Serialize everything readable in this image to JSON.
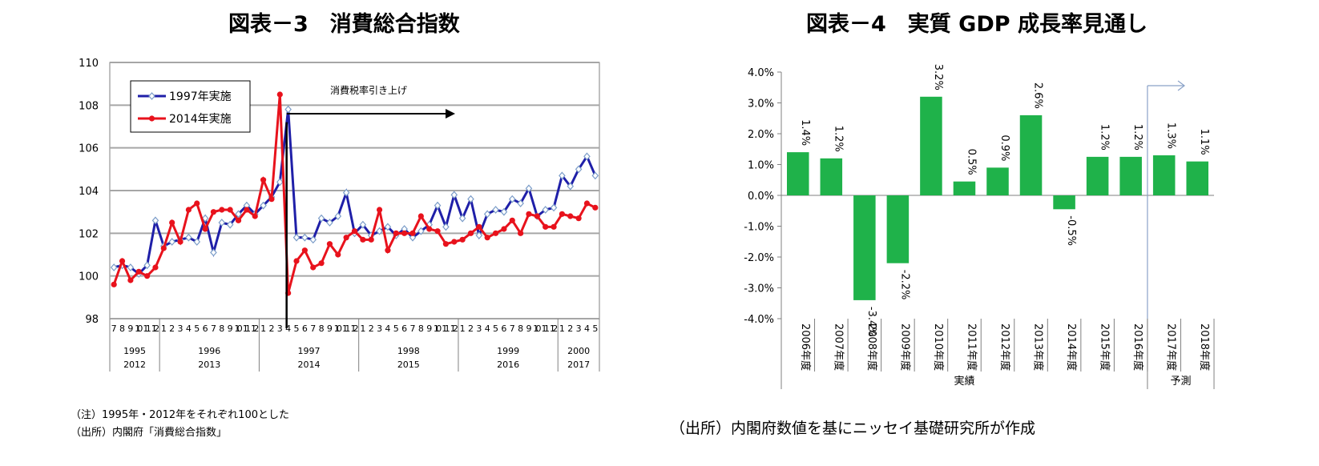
{
  "titles": {
    "left": "図表－3　消費総合指数",
    "right": "図表－4　実質 GDP 成長率見通し"
  },
  "notes": {
    "left_note": "（注）1995年・2012年をそれぞれ100とした",
    "left_source": "（出所）内閣府「消費総合指数」",
    "right_source": "（出所）内閣府数値を基にニッセイ基礎研究所が作成"
  },
  "colors": {
    "series_1997": "#1f1fa8",
    "series_2014": "#e8121c",
    "bar": "#1fb24a"
  },
  "chart_data": [
    {
      "type": "line",
      "title": "消費総合指数",
      "ylim": [
        98,
        110
      ],
      "yticks": [
        98,
        100,
        102,
        104,
        106,
        108,
        110
      ],
      "grid": true,
      "legend_position": "top-left",
      "month_labels": [
        "7",
        "8",
        "9",
        "10",
        "11",
        "12",
        "1",
        "2",
        "3",
        "4",
        "5",
        "6",
        "7",
        "8",
        "9",
        "10",
        "11",
        "12",
        "1",
        "2",
        "3",
        "4",
        "5",
        "6",
        "7",
        "8",
        "9",
        "10",
        "11",
        "12",
        "1",
        "2",
        "3",
        "4",
        "5",
        "6",
        "7",
        "8",
        "9",
        "10",
        "11",
        "12",
        "1",
        "2",
        "3",
        "4",
        "5",
        "6",
        "7",
        "8",
        "9",
        "10",
        "11",
        "12",
        "1",
        "2",
        "3",
        "4",
        "5"
      ],
      "year_groups": [
        {
          "top": "1995",
          "bottom": "2012",
          "start": 0,
          "end": 6
        },
        {
          "top": "1996",
          "bottom": "2013",
          "start": 6,
          "end": 18
        },
        {
          "top": "1997",
          "bottom": "2014",
          "start": 18,
          "end": 30
        },
        {
          "top": "1998",
          "bottom": "2015",
          "start": 30,
          "end": 42
        },
        {
          "top": "1999",
          "bottom": "2016",
          "start": 42,
          "end": 54
        },
        {
          "top": "2000",
          "bottom": "2017",
          "start": 54,
          "end": 59
        }
      ],
      "annotation": {
        "text": "消費税率引き上げ",
        "index": 21
      },
      "series": [
        {
          "name": "1997年実施",
          "color": "#1f1fa8",
          "marker": "diamond",
          "values": [
            100.4,
            100.5,
            100.4,
            100.1,
            100.5,
            102.6,
            101.4,
            101.6,
            101.7,
            101.8,
            101.6,
            102.7,
            101.1,
            102.5,
            102.4,
            102.9,
            103.3,
            102.9,
            103.3,
            103.7,
            104.4,
            107.8,
            101.8,
            101.8,
            101.7,
            102.7,
            102.5,
            102.8,
            103.9,
            102.0,
            102.4,
            101.9,
            102.1,
            102.3,
            101.9,
            102.2,
            101.8,
            102.1,
            102.4,
            103.3,
            102.3,
            103.8,
            102.7,
            103.6,
            101.9,
            102.9,
            103.1,
            103.0,
            103.6,
            103.4,
            104.1,
            102.8,
            103.1,
            103.2,
            104.7,
            104.2,
            105.0,
            105.6,
            104.7
          ]
        },
        {
          "name": "2014年実施",
          "color": "#e8121c",
          "marker": "circle",
          "values": [
            99.6,
            100.7,
            99.8,
            100.2,
            100.0,
            100.4,
            101.3,
            102.5,
            101.6,
            103.1,
            103.4,
            102.2,
            103.0,
            103.1,
            103.1,
            102.6,
            103.1,
            102.8,
            104.5,
            103.6,
            108.5,
            99.2,
            100.7,
            101.2,
            100.4,
            100.6,
            101.5,
            101.0,
            101.8,
            102.1,
            101.7,
            101.7,
            103.1,
            101.2,
            102.0,
            102.0,
            102.0,
            102.8,
            102.2,
            102.1,
            101.5,
            101.6,
            101.7,
            102.0,
            102.3,
            101.8,
            102.0,
            102.2,
            102.6,
            102.0,
            102.9,
            102.8,
            102.3,
            102.3,
            102.9,
            102.8,
            102.7,
            103.4,
            103.2
          ]
        }
      ]
    },
    {
      "type": "bar",
      "title": "実質 GDP 成長率見通し",
      "ylim": [
        -4.0,
        4.0
      ],
      "yticks": [
        "4.0%",
        "3.0%",
        "2.0%",
        "1.0%",
        "0.0%",
        "-1.0%",
        "-2.0%",
        "-3.0%",
        "-4.0%"
      ],
      "categories": [
        "2006年度",
        "2007年度",
        "2008年度",
        "2009年度",
        "2010年度",
        "2011年度",
        "2012年度",
        "2013年度",
        "2014年度",
        "2015年度",
        "2016年度",
        "2017年度",
        "2018年度"
      ],
      "values": [
        1.4,
        1.2,
        -3.4,
        -2.2,
        3.2,
        0.45,
        0.9,
        2.6,
        -0.45,
        1.25,
        1.25,
        1.3,
        1.1
      ],
      "data_labels": [
        "1.4%",
        "1.2%",
        "-3.4%",
        "-2.2%",
        "3.2%",
        "0.5%",
        "0.9%",
        "2.6%",
        "-0.5%",
        "1.2%",
        "1.2%",
        "1.3%",
        "1.1%"
      ],
      "groups": [
        {
          "label": "実績",
          "start": 0,
          "end": 11
        },
        {
          "label": "予測",
          "start": 11,
          "end": 13
        }
      ]
    }
  ]
}
